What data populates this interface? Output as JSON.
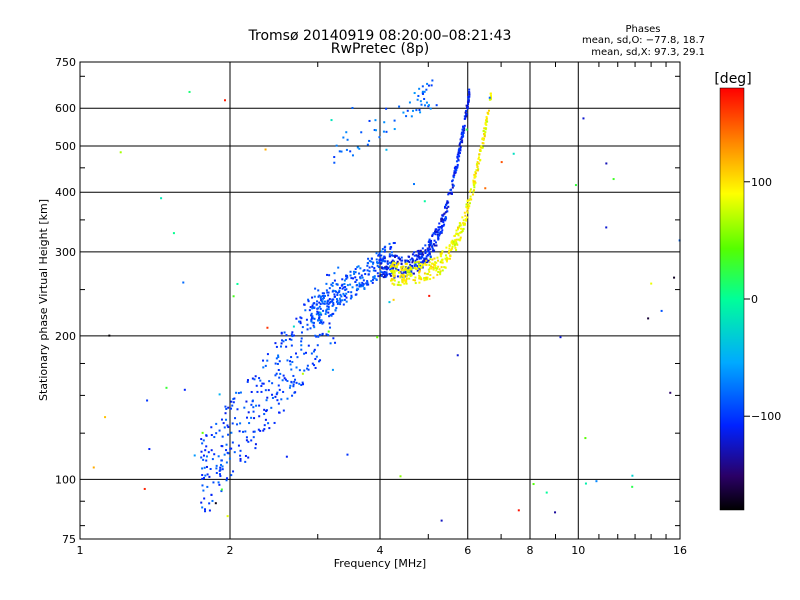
{
  "chart_data": {
    "type": "scatter",
    "title": "Tromsø 20140919 08:20:00–08:21:43",
    "subtitle": "RwPretec (8p)",
    "xlabel": "Frequency [MHz]",
    "ylabel": "Stationary phase Virtual Height [km]",
    "xscale": "log",
    "yscale": "log",
    "xlim": [
      1,
      16
    ],
    "ylim": [
      75,
      750
    ],
    "xticks": [
      "1",
      "2",
      "4",
      "6",
      "8",
      "10",
      "16"
    ],
    "yticks": [
      "75",
      "100",
      "200",
      "300",
      "400",
      "500",
      "600",
      "750"
    ],
    "grid": true,
    "phase_box": {
      "title": "Phases",
      "line_o": "mean, sd,O: −77.8, 18.7",
      "line_x": "mean, sd,X:  97.3, 29.1"
    },
    "colorbar": {
      "label": "[deg]",
      "range": [
        -180,
        180
      ],
      "ticks": [
        "100",
        "0",
        "−100"
      ]
    },
    "clusters": [
      {
        "name": "",
        "x_range": [
          1.75,
          3.3
        ],
        "y_range": [
          100,
          240
        ],
        "phase_deg": -95,
        "n": 360
      },
      {
        "name": "",
        "x_range": [
          2.9,
          4.3
        ],
        "y_range": [
          220,
          300
        ],
        "phase_deg": -90,
        "n": 260
      },
      {
        "name": "",
        "x_range": [
          4.0,
          6.05
        ],
        "y_range": [
          280,
          650
        ],
        "phase_deg": -110,
        "n": 420
      },
      {
        "name": "",
        "x_range": [
          4.2,
          6.7
        ],
        "y_range": [
          270,
          650
        ],
        "phase_deg": 90,
        "n": 380
      },
      {
        "name": "",
        "x_range": [
          3.2,
          5.2
        ],
        "y_range": [
          480,
          650
        ],
        "phase_deg": -80,
        "n": 60
      },
      {
        "name": "",
        "x_range": [
          1.05,
          16
        ],
        "y_range": [
          80,
          650
        ],
        "phase_deg": 0,
        "n": 70
      }
    ]
  }
}
